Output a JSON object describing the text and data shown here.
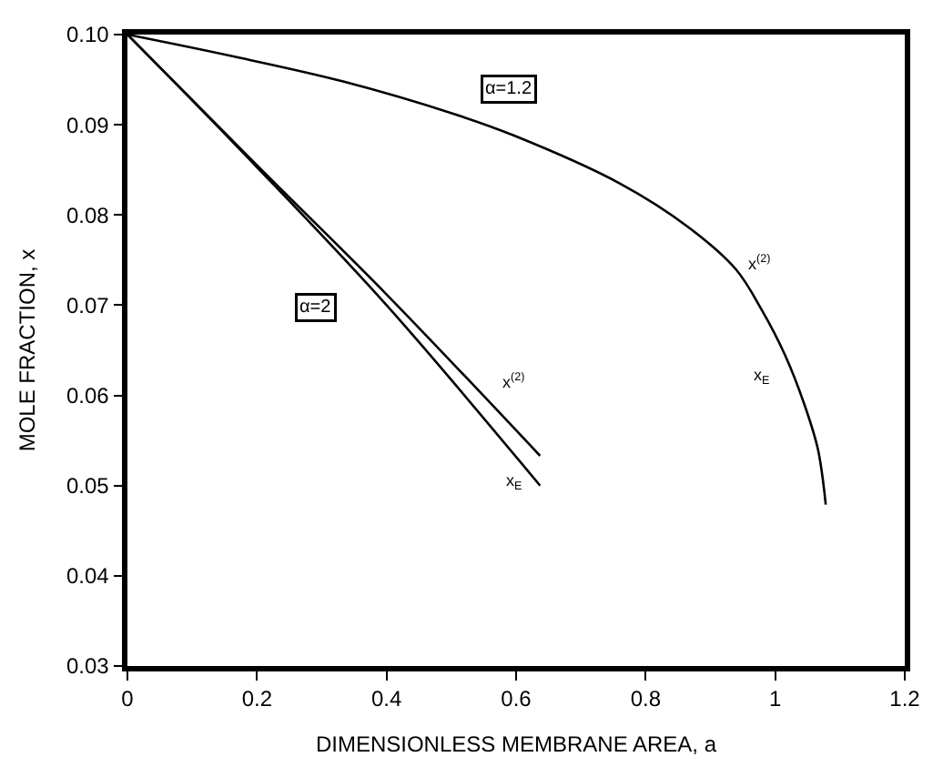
{
  "chart_data": {
    "type": "line",
    "xlabel": "DIMENSIONLESS MEMBRANE AREA, a",
    "ylabel": "MOLE FRACTION, x",
    "xlim": [
      0,
      1.2
    ],
    "xticks": [
      0,
      0.2,
      0.4,
      0.6,
      0.8,
      1,
      1.2
    ],
    "ylim": [
      0.03,
      0.1
    ],
    "yticks": [
      0.03,
      0.04,
      0.05,
      0.06,
      0.07,
      0.08,
      0.09,
      {
        "value": 0.1,
        "label": "0.10"
      }
    ],
    "marker": "none",
    "line_style": "solid",
    "series": [
      {
        "color": "#000000",
        "x": [
          0,
          0.162,
          0.333,
          0.504,
          0.597,
          0.76,
          0.865,
          0.939,
          0.979,
          1.015,
          1.045,
          1.066,
          1.078
        ],
        "values": [
          0.1,
          0.0976,
          0.0948,
          0.0912,
          0.0888,
          0.0835,
          0.0787,
          0.074,
          0.0695,
          0.0645,
          0.059,
          0.054,
          0.0479
        ]
      },
      {
        "color": "#000000",
        "x": [
          0,
          0.2,
          0.4,
          0.637
        ],
        "values": [
          0.1,
          0.0855,
          0.0712,
          0.0533
        ]
      },
      {
        "color": "#000000",
        "x": [
          0,
          0.2,
          0.4,
          0.637
        ],
        "values": [
          0.1,
          0.0853,
          0.07,
          0.05
        ]
      }
    ],
    "annotations": [
      {
        "text": "α=1.2",
        "x": 0.59,
        "y": 0.094
      },
      {
        "text": "α=2",
        "x": 0.29,
        "y": 0.0697
      },
      "x$^{(2)}$",
      "x$_{E}$",
      "x$^{(2)}$",
      "x$_{E}$"
    ]
  }
}
